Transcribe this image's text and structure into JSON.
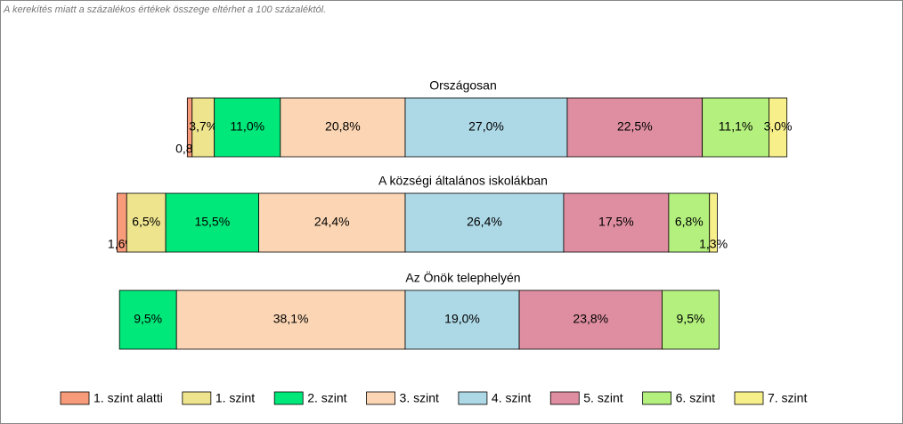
{
  "chart_data": {
    "type": "bar",
    "orientation": "horizontal",
    "stacked": true,
    "note": "A kerekítés miatt a  százalékos értékek összege eltérhet a 100 százaléktól.",
    "categories": [
      "Országosan",
      "A községi általános iskolákban",
      "Az Önök telephelyén"
    ],
    "series": [
      {
        "name": "1. szint alatti",
        "color": "#f79b7a",
        "values": [
          0.8,
          1.6,
          null
        ],
        "value_labels": [
          "0,8%",
          "1,6%",
          null
        ]
      },
      {
        "name": "1. szint",
        "color": "#efe48e",
        "values": [
          3.7,
          6.5,
          null
        ],
        "value_labels": [
          "3,7%",
          "6,5%",
          null
        ]
      },
      {
        "name": "2. szint",
        "color": "#00e87a",
        "values": [
          11.0,
          15.5,
          9.5
        ],
        "value_labels": [
          "11,0%",
          "15,5%",
          "9,5%"
        ]
      },
      {
        "name": "3. szint",
        "color": "#fcd6b4",
        "values": [
          20.8,
          24.4,
          38.1
        ],
        "value_labels": [
          "20,8%",
          "24,4%",
          "38,1%"
        ]
      },
      {
        "name": "4. szint",
        "color": "#add8e6",
        "values": [
          27.0,
          26.4,
          19.0
        ],
        "value_labels": [
          "27,0%",
          "26,4%",
          "19,0%"
        ]
      },
      {
        "name": "5. szint",
        "color": "#de8ea0",
        "values": [
          22.5,
          17.5,
          23.8
        ],
        "value_labels": [
          "22,5%",
          "17,5%",
          "23,8%"
        ]
      },
      {
        "name": "6. szint",
        "color": "#b4f07e",
        "values": [
          11.1,
          6.8,
          9.5
        ],
        "value_labels": [
          "11,1%",
          "6,8%",
          "9,5%"
        ]
      },
      {
        "name": "7. szint",
        "color": "#f7f08a",
        "values": [
          3.0,
          1.3,
          null
        ],
        "value_labels": [
          "3,0%",
          "1,3%",
          null
        ]
      }
    ]
  }
}
